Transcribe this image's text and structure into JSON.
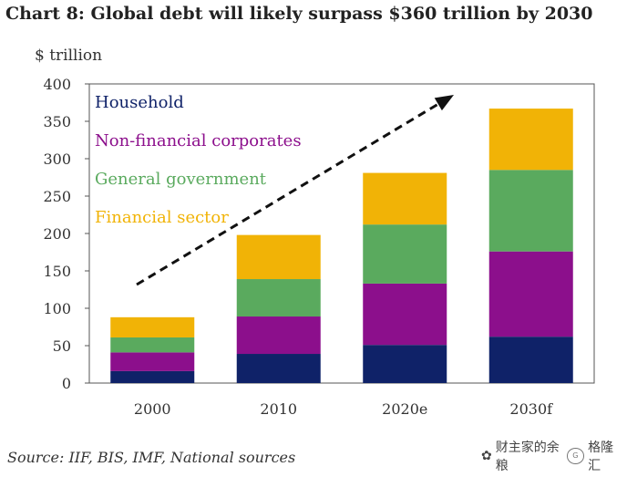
{
  "chart_data": {
    "type": "bar",
    "stacked": true,
    "title": "Chart 8:  Global debt will likely surpass $360 trillion by 2030",
    "ylabel": "$ trillion",
    "xlabel": "",
    "categories": [
      "2000",
      "2010",
      "2020e",
      "2030f"
    ],
    "ylim": [
      0,
      400
    ],
    "yticks": [
      0,
      50,
      100,
      150,
      200,
      250,
      300,
      350,
      400
    ],
    "grid": false,
    "legend_position": "top-left",
    "series": [
      {
        "name": "Household",
        "color": "#0f2268",
        "values": [
          16,
          39,
          51,
          62
        ]
      },
      {
        "name": "Non-financial corporates",
        "color": "#8c0f8c",
        "values": [
          25,
          50,
          82,
          114
        ]
      },
      {
        "name": "General government",
        "color": "#5aaa5e",
        "values": [
          20,
          50,
          79,
          109
        ]
      },
      {
        "name": "Financial sector",
        "color": "#f1b306",
        "values": [
          27,
          59,
          69,
          82
        ]
      }
    ],
    "annotation": {
      "type": "trend-arrow",
      "description": "dashed upward arrow"
    }
  },
  "footer": {
    "source": "Source: IIF, BIS, IMF, National sources"
  },
  "watermark": {
    "text": "财主家的余粮",
    "brand": "格隆汇",
    "logo_letter": "G"
  }
}
